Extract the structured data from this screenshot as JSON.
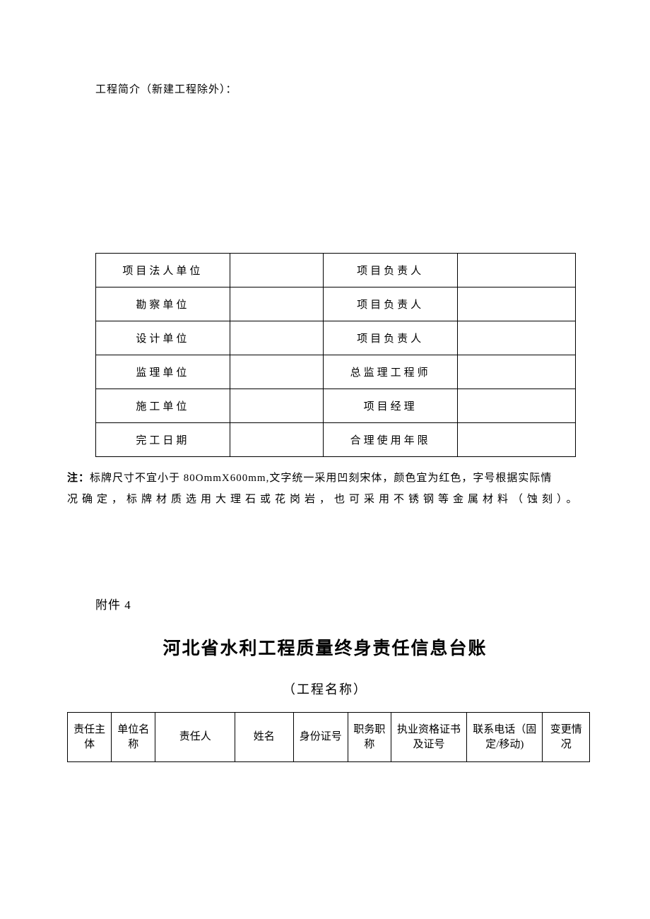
{
  "intro": "工程简介（新建工程除外）：",
  "table1": {
    "rows": [
      {
        "label1": "项目法人单位",
        "label2": "项目负责人"
      },
      {
        "label1": "勘察单位",
        "label2": "项目负责人"
      },
      {
        "label1": "设计单位",
        "label2": "项目负责人"
      },
      {
        "label1": "监理单位",
        "label2": "总监理工程师"
      },
      {
        "label1": "施工单位",
        "label2": "项目经理"
      },
      {
        "label1": "完工日期",
        "label2": "合理使用年限"
      }
    ]
  },
  "note": {
    "label": "注：",
    "line1": "标牌尺寸不宜小于 80OmmX600mm,文字统一采用凹刻宋体，颜色宜为红色，字号根据实际情",
    "line2a": "况确定，",
    "line2b": "标牌材质选用大理石或花岗岩，也可采用不锈钢等金属材料（蚀刻）。"
  },
  "attachment": "附件 4",
  "heading": "河北省水利工程质量终身责任信息台账",
  "subheading": "（工程名称）",
  "table2": {
    "headers": [
      "责任主体",
      "单位名称",
      "责任人",
      "姓名",
      "身份证号",
      "职务职称",
      "执业资格证书及证号",
      "联系电话（固定/移动)",
      "变更情况"
    ],
    "widths": [
      58,
      58,
      105,
      77,
      72,
      57,
      100,
      100,
      62
    ]
  }
}
